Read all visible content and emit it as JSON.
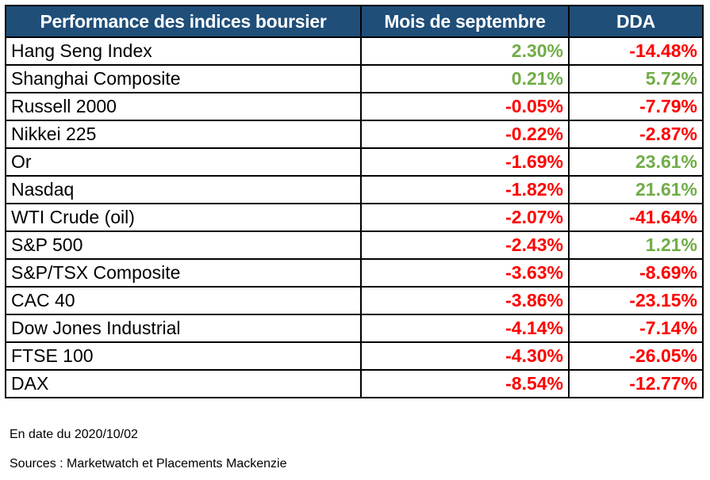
{
  "header": {
    "col_name": "Performance des indices boursier",
    "col_month": "Mois de septembre",
    "col_ytd": "DDA"
  },
  "colors": {
    "header_bg": "#1f4e79",
    "positive": "#70ad47",
    "negative": "#ff0000"
  },
  "rows": [
    {
      "name": "Hang Seng Index",
      "month": "2.30%",
      "ytd": "-14.48%"
    },
    {
      "name": "Shanghai Composite",
      "month": "0.21%",
      "ytd": "5.72%"
    },
    {
      "name": "Russell 2000",
      "month": "-0.05%",
      "ytd": "-7.79%"
    },
    {
      "name": "Nikkei 225",
      "month": "-0.22%",
      "ytd": "-2.87%"
    },
    {
      "name": "Or",
      "month": "-1.69%",
      "ytd": "23.61%"
    },
    {
      "name": "Nasdaq",
      "month": "-1.82%",
      "ytd": "21.61%"
    },
    {
      "name": "WTI Crude (oil)",
      "month": "-2.07%",
      "ytd": "-41.64%"
    },
    {
      "name": "S&P 500",
      "month": "-2.43%",
      "ytd": "1.21%"
    },
    {
      "name": "S&P/TSX Composite",
      "month": "-3.63%",
      "ytd": "-8.69%"
    },
    {
      "name": "CAC 40",
      "month": "-3.86%",
      "ytd": "-23.15%"
    },
    {
      "name": "Dow Jones Industrial",
      "month": "-4.14%",
      "ytd": "-7.14%"
    },
    {
      "name": "FTSE 100",
      "month": "-4.30%",
      "ytd": "-26.05%"
    },
    {
      "name": "DAX",
      "month": "-8.54%",
      "ytd": "-12.77%"
    }
  ],
  "footer": {
    "date_note": "En date du 2020/10/02",
    "sources": "Sources : Marketwatch et Placements Mackenzie"
  }
}
